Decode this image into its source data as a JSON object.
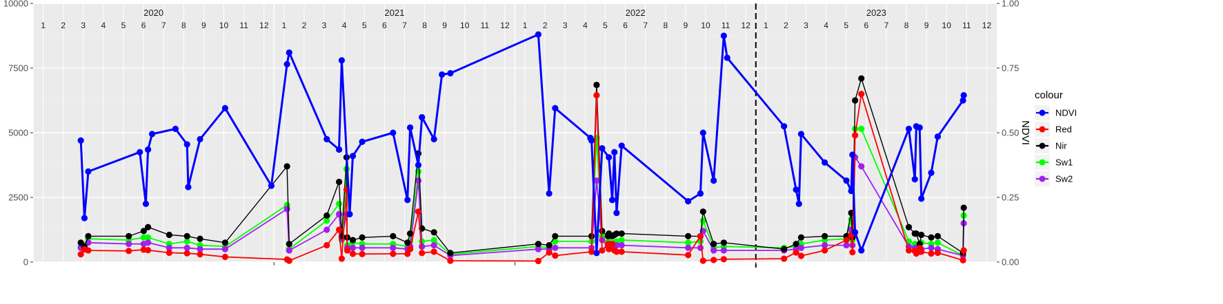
{
  "chart_data": {
    "type": "line",
    "xlabel": "",
    "ylabel_left": "",
    "ylabel_right": "NDVI",
    "ylim_left": [
      0,
      10000
    ],
    "yticks_left": [
      {
        "value": 0,
        "label": "0"
      },
      {
        "value": 2500,
        "label": "2500"
      },
      {
        "value": 5000,
        "label": "5000"
      },
      {
        "value": 7500,
        "label": "7500"
      },
      {
        "value": 10000,
        "label": "10000"
      }
    ],
    "ylim_right": [
      0,
      1
    ],
    "yticks_right": [
      {
        "value": 0,
        "label": "0.00"
      },
      {
        "value": 0.25,
        "label": "0.25"
      },
      {
        "value": 0.5,
        "label": "0.50"
      },
      {
        "value": 0.75,
        "label": "0.75"
      },
      {
        "value": 1,
        "label": "1.00"
      }
    ],
    "xlim": [
      2020.0,
      2024.0
    ],
    "years": [
      {
        "label": "2020",
        "x": 2020.5
      },
      {
        "label": "2021",
        "x": 2021.5
      },
      {
        "label": "2022",
        "x": 2022.5
      },
      {
        "label": "2023",
        "x": 2023.5
      }
    ],
    "months": [
      "1",
      "2",
      "3",
      "4",
      "5",
      "6",
      "7",
      "8",
      "9",
      "10",
      "11",
      "12"
    ],
    "vline": {
      "x": 2023.0,
      "style": "dashed"
    },
    "grid": true,
    "legend": {
      "title": "colour",
      "position": "right"
    },
    "series": [
      {
        "name": "NDVI",
        "color": "#0000ff",
        "axis": "right",
        "x": [
          2020.198,
          2020.213,
          2020.229,
          2020.443,
          2020.468,
          2020.477,
          2020.494,
          2020.591,
          2020.639,
          2020.644,
          2020.693,
          2020.797,
          2020.989,
          2021.054,
          2021.063,
          2021.219,
          2021.27,
          2021.281,
          2021.314,
          2021.327,
          2021.366,
          2021.494,
          2021.554,
          2021.565,
          2021.599,
          2021.614,
          2021.664,
          2021.697,
          2021.732,
          2022.097,
          2022.142,
          2022.167,
          2022.313,
          2022.318,
          2022.339,
          2022.362,
          2022.39,
          2022.404,
          2022.413,
          2022.422,
          2022.443,
          2022.719,
          2022.77,
          2022.781,
          2022.825,
          2022.867,
          2022.881,
          2023.117,
          2023.167,
          2023.179,
          2023.188,
          2023.286,
          2023.376,
          2023.396,
          2023.401,
          2023.412,
          2023.438,
          2023.635,
          2023.66,
          2023.666,
          2023.68,
          2023.687,
          2023.728,
          2023.755,
          2023.86,
          2023.863
        ],
        "y": [
          0.47,
          0.17,
          0.35,
          0.425,
          0.225,
          0.435,
          0.495,
          0.515,
          0.455,
          0.29,
          0.475,
          0.595,
          0.295,
          0.765,
          0.81,
          0.475,
          0.435,
          0.78,
          0.185,
          0.41,
          0.465,
          0.5,
          0.24,
          0.52,
          0.375,
          0.56,
          0.475,
          0.725,
          0.73,
          0.88,
          0.265,
          0.595,
          0.48,
          0.47,
          0.035,
          0.44,
          0.405,
          0.24,
          0.425,
          0.19,
          0.45,
          0.235,
          0.265,
          0.5,
          0.315,
          0.875,
          0.79,
          0.525,
          0.28,
          0.225,
          0.495,
          0.385,
          0.315,
          0.275,
          0.415,
          0.115,
          0.045,
          0.515,
          0.32,
          0.525,
          0.52,
          0.245,
          0.345,
          0.485,
          0.625,
          0.645
        ]
      },
      {
        "name": "Red",
        "color": "#ff0000",
        "axis": "left",
        "x": [
          2020.198,
          2020.213,
          2020.229,
          2020.397,
          2020.459,
          2020.477,
          2020.565,
          2020.639,
          2020.693,
          2020.797,
          2021.054,
          2021.063,
          2021.219,
          2021.27,
          2021.281,
          2021.301,
          2021.304,
          2021.327,
          2021.366,
          2021.494,
          2021.554,
          2021.565,
          2021.599,
          2021.614,
          2021.664,
          2021.732,
          2022.097,
          2022.142,
          2022.167,
          2022.318,
          2022.339,
          2022.362,
          2022.386,
          2022.39,
          2022.404,
          2022.413,
          2022.422,
          2022.443,
          2022.719,
          2022.77,
          2022.781,
          2022.825,
          2022.867,
          2023.117,
          2023.167,
          2023.188,
          2023.286,
          2023.376,
          2023.396,
          2023.401,
          2023.412,
          2023.438,
          2023.635,
          2023.66,
          2023.666,
          2023.68,
          2023.687,
          2023.728,
          2023.755,
          2023.86,
          2023.863
        ],
        "y": [
          300,
          490,
          450,
          430,
          480,
          460,
          360,
          340,
          300,
          200,
          100,
          50,
          650,
          1250,
          130,
          2800,
          450,
          320,
          310,
          320,
          320,
          500,
          1950,
          350,
          400,
          50,
          40,
          370,
          250,
          400,
          6450,
          450,
          700,
          500,
          700,
          450,
          400,
          400,
          270,
          1000,
          50,
          80,
          110,
          130,
          370,
          240,
          450,
          850,
          1050,
          380,
          4900,
          6500,
          450,
          430,
          330,
          540,
          400,
          330,
          360,
          70,
          450
        ]
      },
      {
        "name": "Nir",
        "color": "#000000",
        "axis": "left",
        "x": [
          2020.198,
          2020.213,
          2020.229,
          2020.397,
          2020.459,
          2020.477,
          2020.565,
          2020.639,
          2020.693,
          2020.797,
          2021.054,
          2021.063,
          2021.219,
          2021.27,
          2021.281,
          2021.301,
          2021.304,
          2021.327,
          2021.366,
          2021.494,
          2021.554,
          2021.565,
          2021.599,
          2021.614,
          2021.664,
          2021.732,
          2022.097,
          2022.142,
          2022.167,
          2022.318,
          2022.339,
          2022.362,
          2022.386,
          2022.39,
          2022.404,
          2022.413,
          2022.422,
          2022.443,
          2022.719,
          2022.77,
          2022.781,
          2022.825,
          2022.867,
          2023.117,
          2023.167,
          2023.188,
          2023.286,
          2023.376,
          2023.396,
          2023.401,
          2023.412,
          2023.438,
          2023.635,
          2023.66,
          2023.666,
          2023.68,
          2023.687,
          2023.728,
          2023.755,
          2023.86,
          2023.863
        ],
        "y": [
          750,
          600,
          1000,
          1000,
          1200,
          1350,
          1050,
          1000,
          900,
          750,
          3700,
          700,
          1800,
          3100,
          1000,
          4050,
          950,
          850,
          950,
          1000,
          750,
          1100,
          4200,
          1300,
          1150,
          350,
          700,
          650,
          1000,
          1000,
          6850,
          1200,
          1000,
          1100,
          1000,
          1050,
          1100,
          1100,
          1000,
          1000,
          1950,
          700,
          750,
          500,
          700,
          950,
          1000,
          1000,
          1900,
          950,
          6250,
          7100,
          1350,
          1100,
          1100,
          700,
          1050,
          950,
          1000,
          350,
          2100
        ]
      },
      {
        "name": "Sw1",
        "color": "#00ff00",
        "axis": "left",
        "x": [
          2020.198,
          2020.213,
          2020.229,
          2020.397,
          2020.459,
          2020.477,
          2020.565,
          2020.639,
          2020.693,
          2020.797,
          2021.054,
          2021.063,
          2021.219,
          2021.27,
          2021.281,
          2021.301,
          2021.304,
          2021.327,
          2021.366,
          2021.494,
          2021.554,
          2021.565,
          2021.599,
          2021.614,
          2021.664,
          2021.732,
          2022.097,
          2022.142,
          2022.167,
          2022.318,
          2022.339,
          2022.362,
          2022.386,
          2022.39,
          2022.404,
          2022.413,
          2022.422,
          2022.443,
          2022.719,
          2022.77,
          2022.781,
          2022.825,
          2022.867,
          2023.117,
          2023.167,
          2023.188,
          2023.286,
          2023.376,
          2023.396,
          2023.401,
          2023.412,
          2023.438,
          2023.635,
          2023.66,
          2023.666,
          2023.68,
          2023.687,
          2023.728,
          2023.755,
          2023.86,
          2023.863
        ],
        "y": [
          600,
          650,
          900,
          850,
          950,
          950,
          700,
          800,
          650,
          600,
          2200,
          500,
          1600,
          2250,
          850,
          3600,
          650,
          750,
          700,
          700,
          600,
          800,
          3500,
          800,
          850,
          300,
          600,
          550,
          800,
          800,
          4800,
          1000,
          700,
          800,
          700,
          750,
          800,
          850,
          750,
          800,
          1600,
          550,
          600,
          550,
          600,
          700,
          850,
          900,
          1650,
          850,
          5150,
          5150,
          800,
          700,
          650,
          450,
          750,
          700,
          750,
          250,
          1800
        ]
      },
      {
        "name": "Sw2",
        "color": "#a020f0",
        "axis": "left",
        "x": [
          2020.198,
          2020.213,
          2020.229,
          2020.397,
          2020.459,
          2020.477,
          2020.565,
          2020.639,
          2020.693,
          2020.797,
          2021.054,
          2021.063,
          2021.219,
          2021.27,
          2021.281,
          2021.301,
          2021.304,
          2021.327,
          2021.366,
          2021.494,
          2021.554,
          2021.565,
          2021.599,
          2021.614,
          2021.664,
          2021.732,
          2022.097,
          2022.142,
          2022.167,
          2022.318,
          2022.339,
          2022.362,
          2022.386,
          2022.39,
          2022.404,
          2022.413,
          2022.422,
          2022.443,
          2022.719,
          2022.77,
          2022.781,
          2022.825,
          2022.867,
          2023.117,
          2023.167,
          2023.188,
          2023.286,
          2023.376,
          2023.396,
          2023.401,
          2023.412,
          2023.438,
          2023.635,
          2023.66,
          2023.666,
          2023.68,
          2023.687,
          2023.728,
          2023.755,
          2023.86,
          2023.863
        ],
        "y": [
          550,
          500,
          750,
          700,
          700,
          750,
          550,
          550,
          500,
          500,
          2050,
          450,
          1250,
          1850,
          900,
          1850,
          550,
          550,
          550,
          550,
          500,
          600,
          3150,
          600,
          650,
          250,
          500,
          500,
          550,
          550,
          3150,
          850,
          600,
          700,
          550,
          600,
          650,
          650,
          550,
          550,
          1200,
          450,
          450,
          450,
          500,
          550,
          650,
          650,
          1250,
          650,
          4050,
          3700,
          600,
          550,
          500,
          400,
          500,
          550,
          500,
          250,
          1500
        ]
      }
    ]
  }
}
